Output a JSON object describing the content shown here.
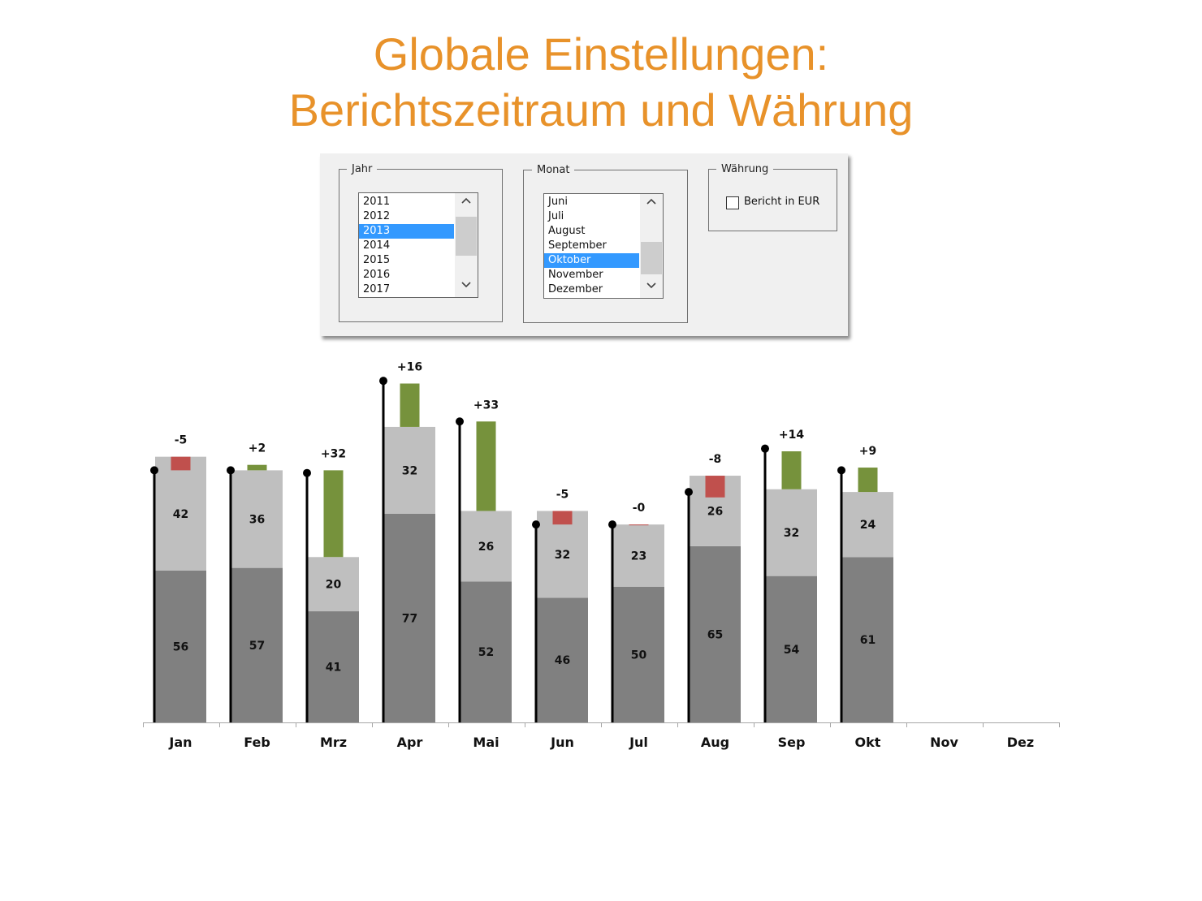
{
  "title": {
    "line1": "Globale Einstellungen:",
    "line2": "Berichtszeitraum und Währung"
  },
  "controls": {
    "year": {
      "legend": "Jahr",
      "items": [
        "2011",
        "2012",
        "2013",
        "2014",
        "2015",
        "2016",
        "2017"
      ],
      "selected": "2013"
    },
    "month": {
      "legend": "Monat",
      "items": [
        "Juni",
        "Juli",
        "August",
        "September",
        "Oktober",
        "November",
        "Dezember"
      ],
      "selected": "Oktober"
    },
    "currency": {
      "legend": "Währung",
      "checkbox_label": "Bericht in EUR",
      "checked": false
    }
  },
  "colors": {
    "title": "#e8922a",
    "selection": "#3399ff",
    "base": "#808080",
    "upper": "#bfbfbf",
    "positive": "#76923c",
    "negative": "#c0504d",
    "reference": "#000000"
  },
  "chart_data": {
    "type": "bar",
    "categories": [
      "Jan",
      "Feb",
      "Mrz",
      "Apr",
      "Mai",
      "Jun",
      "Jul",
      "Aug",
      "Sep",
      "Okt",
      "Nov",
      "Dez"
    ],
    "series": [
      {
        "values": [
          56,
          57,
          41,
          77,
          52,
          46,
          50,
          65,
          54,
          61,
          null,
          null
        ]
      },
      {
        "values": [
          42,
          36,
          20,
          32,
          26,
          32,
          23,
          26,
          32,
          24,
          null,
          null
        ]
      }
    ],
    "delta": {
      "values": [
        -5,
        2,
        32,
        16,
        33,
        -5,
        -0.3,
        -8,
        14,
        9,
        null,
        null
      ],
      "labels": [
        "-5",
        "+2",
        "+32",
        "+16",
        "+33",
        "-5",
        "-0",
        "-8",
        "+14",
        "+9",
        "",
        ""
      ]
    },
    "reference": {
      "values": [
        93,
        93,
        92,
        126,
        111,
        73,
        73,
        85,
        101,
        93,
        null,
        null
      ]
    },
    "ylim": [
      0,
      130
    ]
  }
}
